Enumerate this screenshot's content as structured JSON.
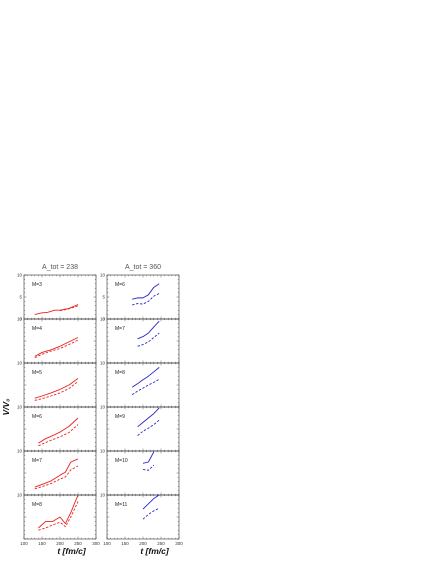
{
  "figure": {
    "y_axis_label": "V/V₀",
    "x_axis_label": "t [fm/c]"
  },
  "chart_data": [
    {
      "type": "line",
      "column_title": "A_tot = 238",
      "panel_label": "M=3",
      "color": "#e8231f",
      "xlim": [
        100,
        300
      ],
      "ylim": [
        0,
        10
      ],
      "yticks": [
        "10",
        "5",
        "0"
      ],
      "series": [
        {
          "style": "solid",
          "x": [
            130,
            150,
            165,
            185,
            200,
            225,
            250
          ],
          "y": [
            1.0,
            1.4,
            1.5,
            2.0,
            2.0,
            2.4,
            3.3
          ]
        },
        {
          "style": "dashed",
          "x": [
            200,
            225,
            250
          ],
          "y": [
            1.9,
            2.3,
            3.0
          ]
        }
      ]
    },
    {
      "type": "line",
      "column_title": "A_tot = 360",
      "panel_label": "M=6",
      "color": "#2626cc",
      "xlim": [
        100,
        300
      ],
      "ylim": [
        0,
        10
      ],
      "yticks": [
        "10",
        "5",
        "0"
      ],
      "series": [
        {
          "style": "solid",
          "x": [
            170,
            185,
            200,
            215,
            230,
            245
          ],
          "y": [
            4.5,
            4.8,
            4.8,
            5.5,
            7.2,
            8.0
          ]
        },
        {
          "style": "dashed",
          "x": [
            170,
            185,
            200,
            215,
            230,
            245
          ],
          "y": [
            3.2,
            3.5,
            3.4,
            4.0,
            5.2,
            5.8
          ]
        }
      ]
    },
    {
      "type": "line",
      "panel_label": "M=4",
      "color": "#e8231f",
      "xlim": [
        100,
        300
      ],
      "ylim": [
        0,
        10
      ],
      "yticks": [
        "10",
        "",
        ""
      ],
      "series": [
        {
          "style": "solid",
          "x": [
            130,
            150,
            175,
            200,
            225,
            250
          ],
          "y": [
            1.5,
            2.4,
            3.0,
            3.8,
            4.8,
            5.8
          ]
        },
        {
          "style": "dashed",
          "x": [
            130,
            150,
            175,
            200,
            225,
            250
          ],
          "y": [
            1.2,
            2.0,
            2.7,
            3.3,
            4.2,
            5.2
          ]
        }
      ]
    },
    {
      "type": "line",
      "panel_label": "M=7",
      "color": "#2626cc",
      "xlim": [
        100,
        300
      ],
      "ylim": [
        0,
        10
      ],
      "yticks": [
        "10",
        "",
        ""
      ],
      "series": [
        {
          "style": "solid",
          "x": [
            185,
            200,
            215,
            230,
            245
          ],
          "y": [
            5.5,
            6.0,
            6.8,
            8.2,
            9.5
          ]
        },
        {
          "style": "dashed",
          "x": [
            185,
            200,
            215,
            230,
            245
          ],
          "y": [
            3.8,
            4.2,
            4.8,
            5.8,
            6.8
          ]
        }
      ]
    },
    {
      "type": "line",
      "panel_label": "M=5",
      "color": "#e8231f",
      "xlim": [
        100,
        300
      ],
      "ylim": [
        0,
        10
      ],
      "yticks": [
        "10",
        "",
        ""
      ],
      "series": [
        {
          "style": "solid",
          "x": [
            130,
            150,
            175,
            200,
            225,
            250
          ],
          "y": [
            2.0,
            2.5,
            3.2,
            4.0,
            5.0,
            6.5
          ]
        },
        {
          "style": "dashed",
          "x": [
            130,
            150,
            175,
            200,
            225,
            250
          ],
          "y": [
            1.5,
            1.9,
            2.5,
            3.2,
            4.2,
            5.8
          ]
        }
      ]
    },
    {
      "type": "line",
      "panel_label": "M=8",
      "color": "#2626cc",
      "xlim": [
        100,
        300
      ],
      "ylim": [
        0,
        10
      ],
      "yticks": [
        "10",
        "",
        ""
      ],
      "series": [
        {
          "style": "solid",
          "x": [
            170,
            185,
            200,
            215,
            230,
            245
          ],
          "y": [
            4.5,
            5.3,
            6.2,
            7.0,
            8.0,
            9.0
          ]
        },
        {
          "style": "dashed",
          "x": [
            170,
            185,
            200,
            215,
            230,
            245
          ],
          "y": [
            2.8,
            3.6,
            4.3,
            5.0,
            5.6,
            6.3
          ]
        }
      ]
    },
    {
      "type": "line",
      "panel_label": "M=6",
      "color": "#e8231f",
      "xlim": [
        100,
        300
      ],
      "ylim": [
        0,
        10
      ],
      "yticks": [
        "10",
        "",
        ""
      ],
      "series": [
        {
          "style": "solid",
          "x": [
            140,
            160,
            180,
            200,
            225,
            250
          ],
          "y": [
            1.8,
            2.8,
            3.5,
            4.3,
            5.6,
            7.5
          ]
        },
        {
          "style": "dashed",
          "x": [
            140,
            160,
            180,
            200,
            225,
            250
          ],
          "y": [
            1.2,
            1.9,
            2.6,
            3.2,
            4.2,
            6.0
          ]
        }
      ]
    },
    {
      "type": "line",
      "panel_label": "M=9",
      "color": "#2626cc",
      "xlim": [
        100,
        300
      ],
      "ylim": [
        0,
        10
      ],
      "yticks": [
        "10",
        "",
        ""
      ],
      "series": [
        {
          "style": "solid",
          "x": [
            185,
            200,
            215,
            230,
            245
          ],
          "y": [
            5.5,
            6.5,
            7.5,
            8.5,
            9.8
          ]
        },
        {
          "style": "dashed",
          "x": [
            185,
            200,
            215,
            230,
            245
          ],
          "y": [
            3.5,
            4.5,
            5.2,
            6.0,
            7.0
          ]
        }
      ]
    },
    {
      "type": "line",
      "panel_label": "M=7",
      "color": "#e8231f",
      "xlim": [
        100,
        300
      ],
      "ylim": [
        0,
        10
      ],
      "yticks": [
        "10",
        "",
        ""
      ],
      "series": [
        {
          "style": "solid",
          "x": [
            130,
            150,
            175,
            200,
            215,
            230,
            250
          ],
          "y": [
            1.8,
            2.4,
            3.2,
            4.5,
            5.2,
            7.5,
            8.2
          ]
        },
        {
          "style": "dashed",
          "x": [
            130,
            150,
            175,
            200,
            215,
            230,
            250
          ],
          "y": [
            1.4,
            1.9,
            2.6,
            3.6,
            4.1,
            5.7,
            6.6
          ]
        }
      ]
    },
    {
      "type": "line",
      "panel_label": "M=10",
      "color": "#2626cc",
      "xlim": [
        100,
        300
      ],
      "ylim": [
        0,
        10
      ],
      "yticks": [
        "10",
        "",
        ""
      ],
      "series": [
        {
          "style": "solid",
          "x": [
            200,
            215,
            230
          ],
          "y": [
            7.2,
            7.5,
            9.8
          ]
        },
        {
          "style": "dashed",
          "x": [
            200,
            215,
            230
          ],
          "y": [
            5.8,
            5.6,
            6.8
          ]
        }
      ]
    },
    {
      "type": "line",
      "panel_label": "M=8",
      "color": "#e8231f",
      "xlim": [
        100,
        300
      ],
      "ylim": [
        0,
        10
      ],
      "yticks": [
        "10",
        "",
        ""
      ],
      "xticks": [
        "100",
        "150",
        "200",
        "250",
        "300"
      ],
      "series": [
        {
          "style": "solid",
          "x": [
            140,
            160,
            180,
            200,
            215,
            230,
            250
          ],
          "y": [
            2.5,
            4.0,
            4.0,
            5.0,
            3.5,
            6.0,
            10.0
          ]
        },
        {
          "style": "dashed",
          "x": [
            140,
            160,
            180,
            200,
            215,
            230,
            250
          ],
          "y": [
            2.0,
            2.5,
            3.2,
            3.8,
            2.8,
            5.0,
            8.5
          ]
        }
      ]
    },
    {
      "type": "line",
      "panel_label": "M=11",
      "color": "#2626cc",
      "xlim": [
        100,
        300
      ],
      "ylim": [
        0,
        10
      ],
      "yticks": [
        "10",
        "",
        ""
      ],
      "xticks": [
        "100",
        "150",
        "200",
        "250",
        "300"
      ],
      "series": [
        {
          "style": "solid",
          "x": [
            200,
            215,
            230,
            245
          ],
          "y": [
            6.8,
            8.0,
            9.2,
            10.0
          ]
        },
        {
          "style": "dashed",
          "x": [
            200,
            215,
            230,
            245
          ],
          "y": [
            4.5,
            5.6,
            6.4,
            7.0
          ]
        }
      ]
    }
  ]
}
